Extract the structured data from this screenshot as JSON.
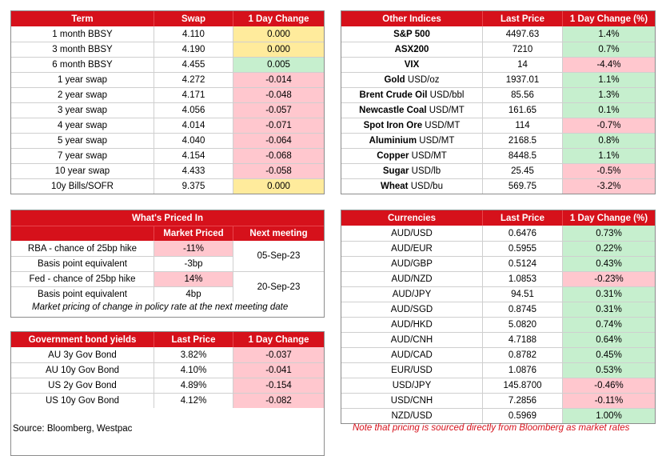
{
  "rates": {
    "headers": [
      "Term",
      "Swap",
      "1 Day Change"
    ],
    "rows": [
      {
        "term": "1 month BBSY",
        "swap": "4.110",
        "change": "0.000",
        "tone": "y"
      },
      {
        "term": "3 month BBSY",
        "swap": "4.190",
        "change": "0.000",
        "tone": "y"
      },
      {
        "term": "6 month BBSY",
        "swap": "4.455",
        "change": "0.005",
        "tone": "g"
      },
      {
        "term": "1 year swap",
        "swap": "4.272",
        "change": "-0.014",
        "tone": "rd"
      },
      {
        "term": "2 year swap",
        "swap": "4.171",
        "change": "-0.048",
        "tone": "rd"
      },
      {
        "term": "3 year swap",
        "swap": "4.056",
        "change": "-0.057",
        "tone": "rd"
      },
      {
        "term": "4 year swap",
        "swap": "4.014",
        "change": "-0.071",
        "tone": "rd"
      },
      {
        "term": "5 year swap",
        "swap": "4.040",
        "change": "-0.064",
        "tone": "rd"
      },
      {
        "term": "7 year swap",
        "swap": "4.154",
        "change": "-0.068",
        "tone": "rd"
      },
      {
        "term": "10 year swap",
        "swap": "4.433",
        "change": "-0.058",
        "tone": "rd"
      },
      {
        "term": "10y Bills/SOFR",
        "swap": "9.375",
        "change": "0.000",
        "tone": "y"
      }
    ]
  },
  "priced": {
    "title": "What's Priced In",
    "headers": [
      "",
      "Market Priced",
      "Next meeting"
    ],
    "rows": [
      {
        "label": "RBA - chance of 25bp hike",
        "value": "-11%",
        "tone": "rd"
      },
      {
        "label": "Basis point equivalent",
        "value": "-3bp",
        "tone": ""
      },
      {
        "label": "Fed - chance of 25bp hike",
        "value": "14%",
        "tone": "rd"
      },
      {
        "label": "Basis point equivalent",
        "value": "4bp",
        "tone": ""
      }
    ],
    "meetings": [
      "05-Sep-23",
      "20-Sep-23"
    ],
    "note": "Market pricing of change in policy rate at the next meeting date"
  },
  "bonds": {
    "headers": [
      "Government bond yields",
      "Last Price",
      "1 Day Change"
    ],
    "rows": [
      {
        "name": "AU 3y Gov Bond",
        "price": "3.82%",
        "change": "-0.037",
        "tone": "rd"
      },
      {
        "name": "AU 10y Gov Bond",
        "price": "4.10%",
        "change": "-0.041",
        "tone": "rd"
      },
      {
        "name": "US 2y Gov Bond",
        "price": "4.89%",
        "change": "-0.154",
        "tone": "rd"
      },
      {
        "name": "US 10y Gov Bond",
        "price": "4.12%",
        "change": "-0.082",
        "tone": "rd"
      }
    ]
  },
  "indices": {
    "headers": [
      "Other Indices",
      "Last Price",
      "1 Day Change (%)"
    ],
    "rows": [
      {
        "name": "S&P 500",
        "unit": "",
        "price": "4497.63",
        "change": "1.4%",
        "tone": "g"
      },
      {
        "name": "ASX200",
        "unit": "",
        "price": "7210",
        "change": "0.7%",
        "tone": "g"
      },
      {
        "name": "VIX",
        "unit": "",
        "price": "14",
        "change": "-4.4%",
        "tone": "rd"
      },
      {
        "name": "Gold",
        "unit": " USD/oz",
        "price": "1937.01",
        "change": "1.1%",
        "tone": "g"
      },
      {
        "name": "Brent Crude Oil",
        "unit": " USD/bbl",
        "price": "85.56",
        "change": "1.3%",
        "tone": "g"
      },
      {
        "name": "Newcastle Coal",
        "unit": " USD/MT",
        "price": "161.65",
        "change": "0.1%",
        "tone": "g"
      },
      {
        "name": "Spot Iron Ore",
        "unit": " USD/MT",
        "price": "114",
        "change": "-0.7%",
        "tone": "rd"
      },
      {
        "name": "Aluminium",
        "unit": " USD/MT",
        "price": "2168.5",
        "change": "0.8%",
        "tone": "g"
      },
      {
        "name": "Copper",
        "unit": " USD/MT",
        "price": "8448.5",
        "change": "1.1%",
        "tone": "g"
      },
      {
        "name": "Sugar",
        "unit": " USD/lb",
        "price": "25.45",
        "change": "-0.5%",
        "tone": "rd"
      },
      {
        "name": "Wheat",
        "unit": " USD/bu",
        "price": "569.75",
        "change": "-3.2%",
        "tone": "rd"
      }
    ]
  },
  "currencies": {
    "headers": [
      "Currencies",
      "Last Price",
      "1 Day Change (%)"
    ],
    "rows": [
      {
        "pair": "AUD/USD",
        "price": "0.6476",
        "change": "0.73%",
        "tone": "g"
      },
      {
        "pair": "AUD/EUR",
        "price": "0.5955",
        "change": "0.22%",
        "tone": "g"
      },
      {
        "pair": "AUD/GBP",
        "price": "0.5124",
        "change": "0.43%",
        "tone": "g"
      },
      {
        "pair": "AUD/NZD",
        "price": "1.0853",
        "change": "-0.23%",
        "tone": "rd"
      },
      {
        "pair": "AUD/JPY",
        "price": "94.51",
        "change": "0.31%",
        "tone": "g"
      },
      {
        "pair": "AUD/SGD",
        "price": "0.8745",
        "change": "0.31%",
        "tone": "g"
      },
      {
        "pair": "AUD/HKD",
        "price": "5.0820",
        "change": "0.74%",
        "tone": "g"
      },
      {
        "pair": "AUD/CNH",
        "price": "4.7188",
        "change": "0.64%",
        "tone": "g"
      },
      {
        "pair": "AUD/CAD",
        "price": "0.8782",
        "change": "0.45%",
        "tone": "g"
      },
      {
        "pair": "EUR/USD",
        "price": "1.0876",
        "change": "0.53%",
        "tone": "g"
      },
      {
        "pair": "USD/JPY",
        "price": "145.8700",
        "change": "-0.46%",
        "tone": "rd"
      },
      {
        "pair": "USD/CNH",
        "price": "7.2856",
        "change": "-0.11%",
        "tone": "rd"
      },
      {
        "pair": "NZD/USD",
        "price": "0.5969",
        "change": "1.00%",
        "tone": "g"
      }
    ]
  },
  "footer": {
    "source": "Source: Bloomberg, Westpac",
    "disclaimer": "Note that pricing is sourced directly from Bloomberg as market rates"
  }
}
